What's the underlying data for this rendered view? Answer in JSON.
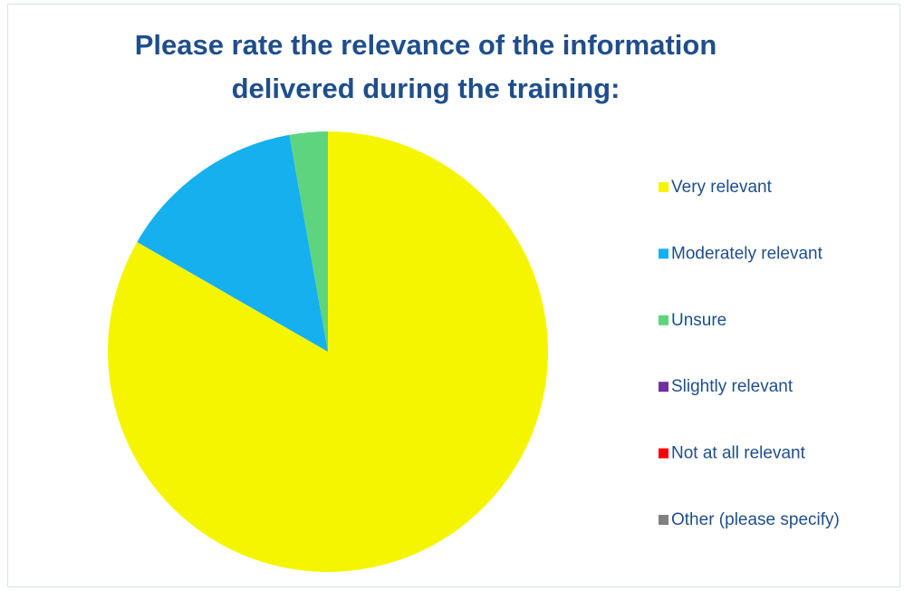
{
  "chart_data": {
    "type": "pie",
    "title": "Please rate the relevance of the information delivered during the training:",
    "categories": [
      "Very relevant",
      "Moderately relevant",
      "Unsure",
      "Slightly relevant",
      "Not at all relevant",
      "Other (please specify)"
    ],
    "values": [
      83.3,
      13.9,
      2.8,
      0,
      0,
      0
    ],
    "colors": [
      "#f5f500",
      "#16b0ef",
      "#5fd47e",
      "#7030a0",
      "#ff0000",
      "#808080"
    ],
    "legend": "right"
  }
}
